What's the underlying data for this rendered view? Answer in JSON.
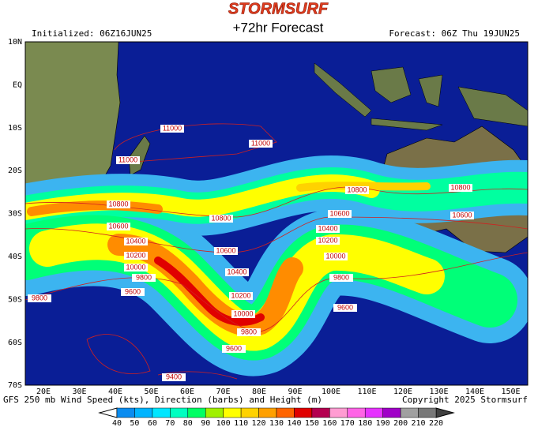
{
  "header": {
    "logo": "STORMSURF",
    "title": "+72hr Forecast",
    "initialized": "Initialized: 06Z16JUN25",
    "forecast": "Forecast: 06Z Thu 19JUN25"
  },
  "map": {
    "lat_labels": [
      "10N",
      "EQ",
      "10S",
      "20S",
      "30S",
      "40S",
      "50S",
      "60S",
      "70S"
    ],
    "lon_labels": [
      "20E",
      "30E",
      "40E",
      "50E",
      "60E",
      "70E",
      "80E",
      "90E",
      "100E",
      "110E",
      "120E",
      "130E",
      "140E",
      "150E"
    ],
    "contour_labels": [
      "11000",
      "11000",
      "11000",
      "10800",
      "10800",
      "10800",
      "10800",
      "10600",
      "10600",
      "10600",
      "10600",
      "10400",
      "10400",
      "10400",
      "10200",
      "10200",
      "10200",
      "10000",
      "10000",
      "10000",
      "9800",
      "9800",
      "9800",
      "9800",
      "9600",
      "9600",
      "9600",
      "9400"
    ]
  },
  "footer": {
    "description": "GFS 250 mb Wind Speed (kts), Direction (barbs) and Height (m)",
    "copyright": "Copyright 2025 Stormsurf"
  },
  "legend": {
    "ticks": [
      40,
      50,
      60,
      70,
      80,
      90,
      100,
      110,
      120,
      130,
      140,
      150,
      160,
      170,
      180,
      190,
      200,
      210,
      220
    ],
    "colors": [
      "#0a8cf0",
      "#00b4ff",
      "#00e6ff",
      "#00ffc0",
      "#00ff64",
      "#a0f000",
      "#ffff00",
      "#ffd200",
      "#ffa000",
      "#ff6400",
      "#e00000",
      "#b40050",
      "#ff9cd2",
      "#ff64e6",
      "#e632ff",
      "#a000c8",
      "#a0a0a0",
      "#787878"
    ]
  }
}
